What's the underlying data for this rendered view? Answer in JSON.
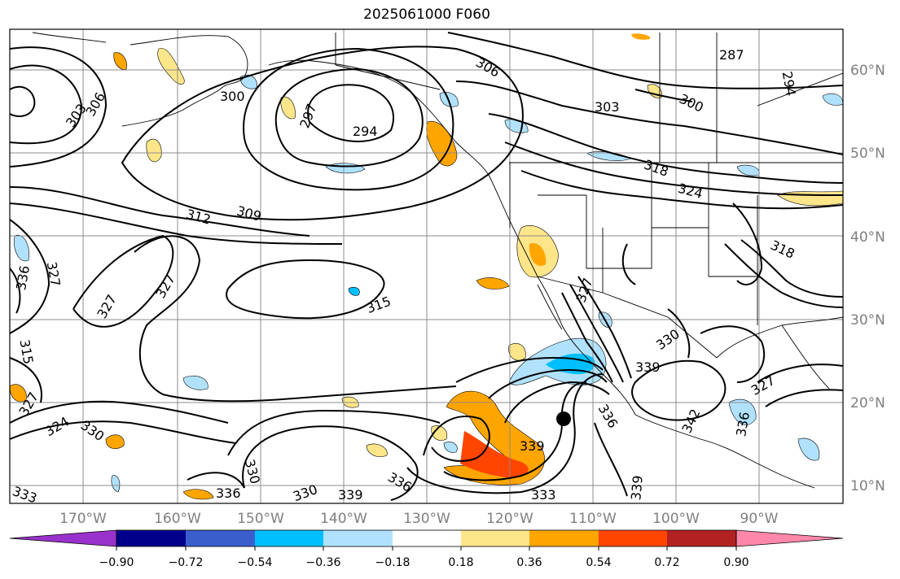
{
  "title": "2025061000 F060",
  "map": {
    "lat_labels": [
      "60°N",
      "50°N",
      "40°N",
      "30°N",
      "20°N",
      "10°N"
    ],
    "lon_labels": [
      "170°W",
      "160°W",
      "150°W",
      "140°W",
      "130°W",
      "120°W",
      "110°W",
      "100°W",
      "90°W"
    ],
    "contour_labels": [
      "287",
      "294",
      "294",
      "297",
      "300",
      "300",
      "303",
      "303",
      "306",
      "306",
      "309",
      "312",
      "315",
      "318",
      "318",
      "324",
      "327",
      "327",
      "327",
      "327",
      "327",
      "324",
      "330",
      "330",
      "330",
      "330",
      "333",
      "333",
      "336",
      "336",
      "336",
      "336",
      "339",
      "339",
      "339",
      "339",
      "342",
      "315",
      "336",
      "327"
    ],
    "marker": "storm-center-dot"
  },
  "colorbar": {
    "ticks": [
      "−0.90",
      "−0.72",
      "−0.54",
      "−0.36",
      "−0.18",
      "0.18",
      "0.36",
      "0.54",
      "0.72",
      "0.90"
    ],
    "colors": [
      "#9932cc",
      "#00008b",
      "#3a5fcd",
      "#00bfff",
      "#b0e2ff",
      "#ffffff",
      "#fde58a",
      "#ffa500",
      "#ff4500",
      "#b22222",
      "#ff88aa"
    ]
  }
}
